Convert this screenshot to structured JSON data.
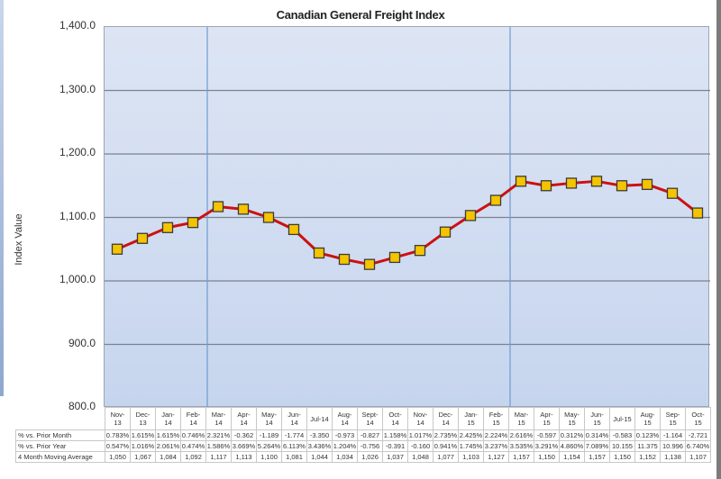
{
  "chart_data": {
    "type": "line",
    "title": "Canadian General Freight Index",
    "xlabel": "",
    "ylabel": "Index Value",
    "ylim": [
      800,
      1400
    ],
    "yticks": [
      "1,400.0",
      "1,300.0",
      "1,200.0",
      "1,100.0",
      "1,000.0",
      "900.0",
      "800.0"
    ],
    "grid": true,
    "categories": [
      "Nov-13",
      "Dec-13",
      "Jan-14",
      "Feb-14",
      "Mar-14",
      "Apr-14",
      "May-14",
      "Jun-14",
      "Jul-14",
      "Aug-14",
      "Sept-14",
      "Oct-14",
      "Nov-14",
      "Dec-14",
      "Jan-15",
      "Feb-15",
      "Mar-15",
      "Apr-15",
      "May-15",
      "Jun-15",
      "Jul-15",
      "Aug-15",
      "Sep-15",
      "Oct-15"
    ],
    "category_labels": [
      [
        "Nov-",
        "13"
      ],
      [
        "Dec-",
        "13"
      ],
      [
        "Jan-",
        "14"
      ],
      [
        "Feb-",
        "14"
      ],
      [
        "Mar-",
        "14"
      ],
      [
        "Apr-",
        "14"
      ],
      [
        "May-",
        "14"
      ],
      [
        "Jun-",
        "14"
      ],
      [
        "Jul-14",
        ""
      ],
      [
        "Aug-",
        "14"
      ],
      [
        "Sept-",
        "14"
      ],
      [
        "Oct-",
        "14"
      ],
      [
        "Nov-",
        "14"
      ],
      [
        "Dec-",
        "14"
      ],
      [
        "Jan-",
        "15"
      ],
      [
        "Feb-",
        "15"
      ],
      [
        "Mar-",
        "15"
      ],
      [
        "Apr-",
        "15"
      ],
      [
        "May-",
        "15"
      ],
      [
        "Jun-",
        "15"
      ],
      [
        "Jul-15",
        ""
      ],
      [
        "Aug-",
        "15"
      ],
      [
        "Sep-",
        "15"
      ],
      [
        "Oct-",
        "15"
      ]
    ],
    "series": [
      {
        "name": "4 Month Moving Average",
        "values": [
          1050,
          1067,
          1084,
          1092,
          1117,
          1113,
          1100,
          1081,
          1044,
          1034,
          1026,
          1037,
          1048,
          1077,
          1103,
          1127,
          1157,
          1150,
          1154,
          1157,
          1150,
          1152,
          1138,
          1107
        ],
        "line_color": "#cc1111",
        "marker_color": "#f5c400"
      }
    ],
    "vertical_markers": [
      "Mar-14",
      "Mar-15"
    ],
    "table": {
      "rows": [
        {
          "label": "% vs. Prior Month",
          "values": [
            "0.783%",
            "1.615%",
            "1.615%",
            "0.746%",
            "2.321%",
            "-0.362",
            "-1.189",
            "-1.774",
            "-3.350",
            "-0.973",
            "-0.827",
            "1.158%",
            "1.017%",
            "2.735%",
            "2.425%",
            "2.224%",
            "2.616%",
            "-0.597",
            "0.312%",
            "0.314%",
            "-0.583",
            "0.123%",
            "-1.164",
            "-2.721"
          ]
        },
        {
          "label": "% vs. Prior Year",
          "values": [
            "0.547%",
            "1.016%",
            "2.061%",
            "0.474%",
            "1.586%",
            "3.669%",
            "5.264%",
            "6.113%",
            "3.436%",
            "1.204%",
            "-0.756",
            "-0.391",
            "-0.160",
            "0.941%",
            "1.745%",
            "3.237%",
            "3.535%",
            "3.291%",
            "4.860%",
            "7.089%",
            "10.155",
            "11.375",
            "10.996",
            "6.740%"
          ]
        },
        {
          "label": "4 Month Moving Average",
          "values": [
            "1,050",
            "1,067",
            "1,084",
            "1,092",
            "1,117",
            "1,113",
            "1,100",
            "1,081",
            "1,044",
            "1,034",
            "1,026",
            "1,037",
            "1,048",
            "1,077",
            "1,103",
            "1,127",
            "1,157",
            "1,150",
            "1,154",
            "1,157",
            "1,150",
            "1,152",
            "1,138",
            "1,107"
          ]
        }
      ]
    }
  }
}
